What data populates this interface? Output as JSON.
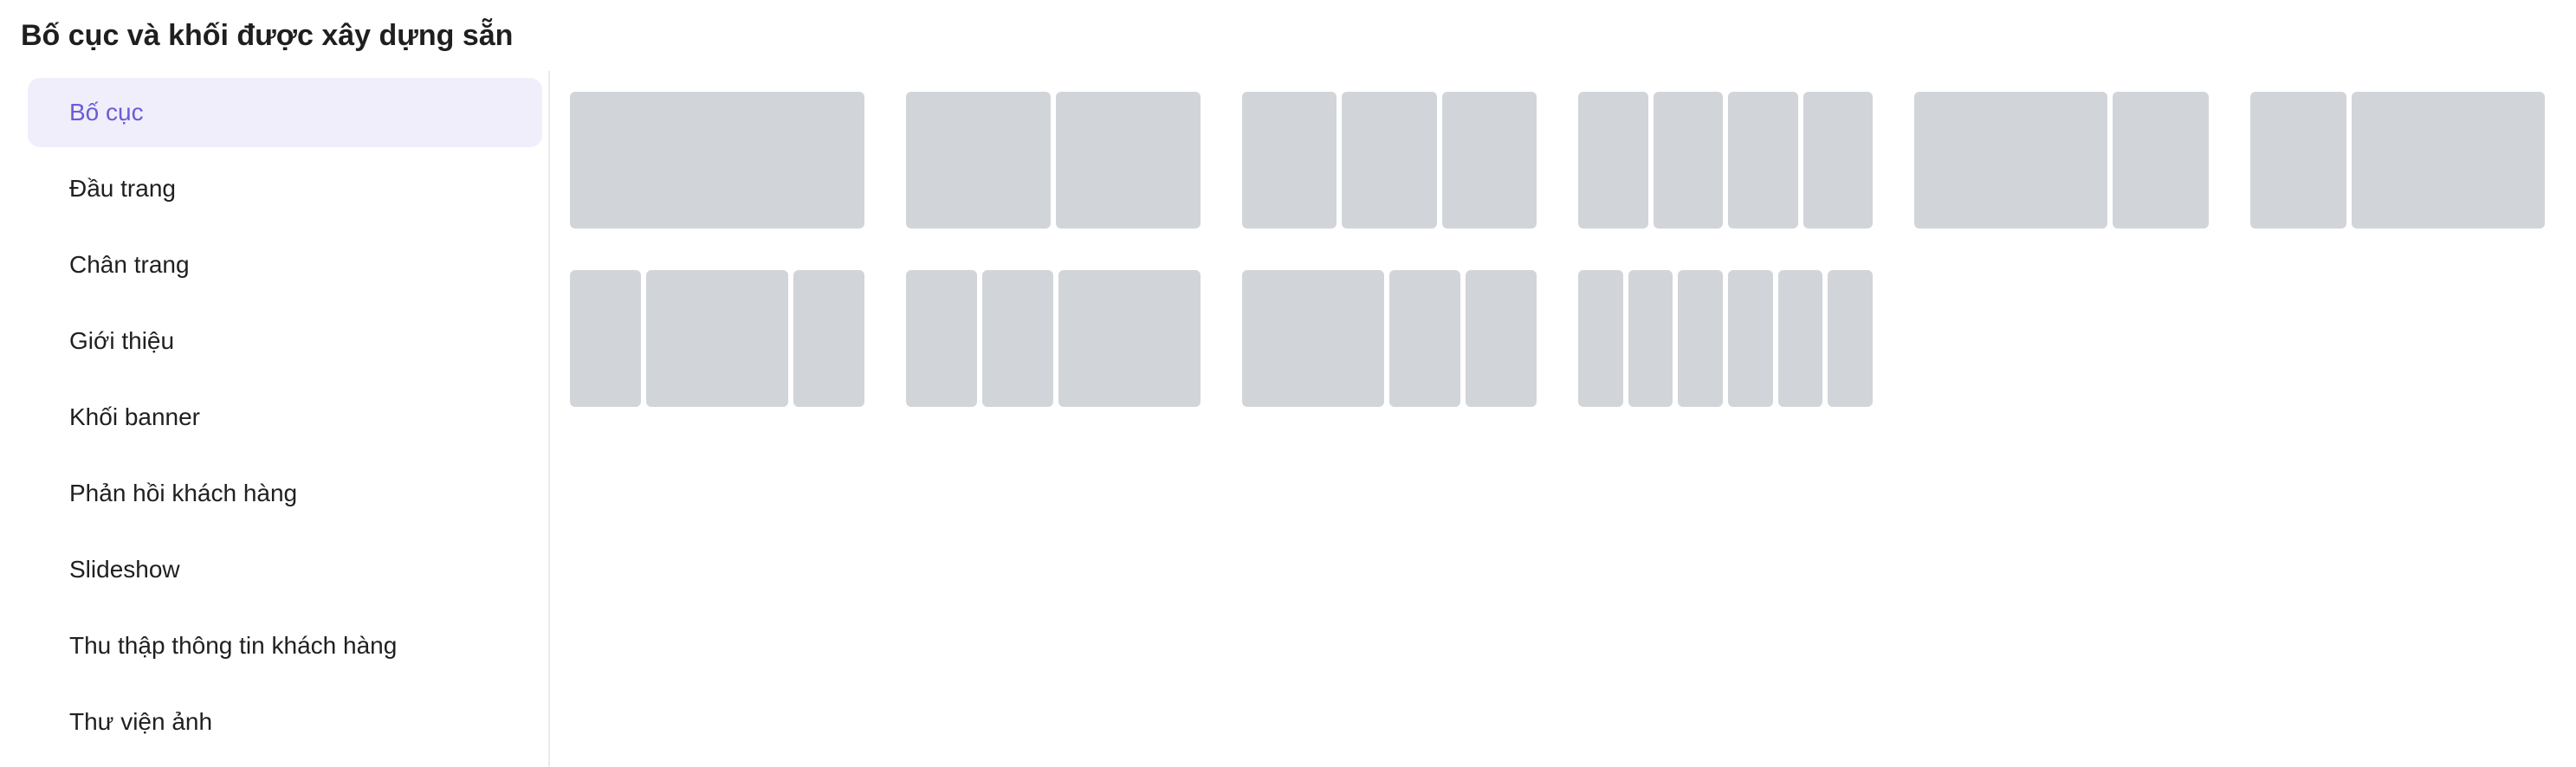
{
  "title": "Bố cục và khối được xây dựng sẵn",
  "sidebar": {
    "items": [
      {
        "label": "Bố cục",
        "active": true
      },
      {
        "label": "Đầu trang"
      },
      {
        "label": "Chân trang"
      },
      {
        "label": "Giới thiệu"
      },
      {
        "label": "Khối banner"
      },
      {
        "label": "Phản hồi khách hàng"
      },
      {
        "label": "Slideshow"
      },
      {
        "label": "Thu thập thông tin khách hàng"
      },
      {
        "label": "Thư viện ảnh"
      }
    ]
  },
  "layouts": [
    {
      "name": "1 cột",
      "ratios": [
        1
      ]
    },
    {
      "name": "2 cột",
      "ratios": [
        1,
        1
      ]
    },
    {
      "name": "3 cột",
      "ratios": [
        1,
        1,
        1
      ]
    },
    {
      "name": "4 cột",
      "ratios": [
        1,
        1,
        1,
        1
      ]
    },
    {
      "name": "2/3 + 1/3",
      "ratios": [
        2,
        1
      ]
    },
    {
      "name": "1/3 + 2/3",
      "ratios": [
        1,
        2
      ]
    },
    {
      "name": "1/4 + 1/2 + 1/4",
      "ratios": [
        1,
        2,
        1
      ]
    },
    {
      "name": "1/4 + 1/4 + 1/2",
      "ratios": [
        1,
        1,
        2
      ]
    },
    {
      "name": "1/2 + 1/4 + 1/4",
      "ratios": [
        2,
        1,
        1
      ]
    },
    {
      "name": "6 cột",
      "ratios": [
        1,
        1,
        1,
        1,
        1,
        1
      ]
    }
  ],
  "colors": {
    "accent": "#6a5cd6",
    "active_bg": "#f0eefb",
    "placeholder": "#d1d5d9",
    "divider": "#ebebeb"
  }
}
